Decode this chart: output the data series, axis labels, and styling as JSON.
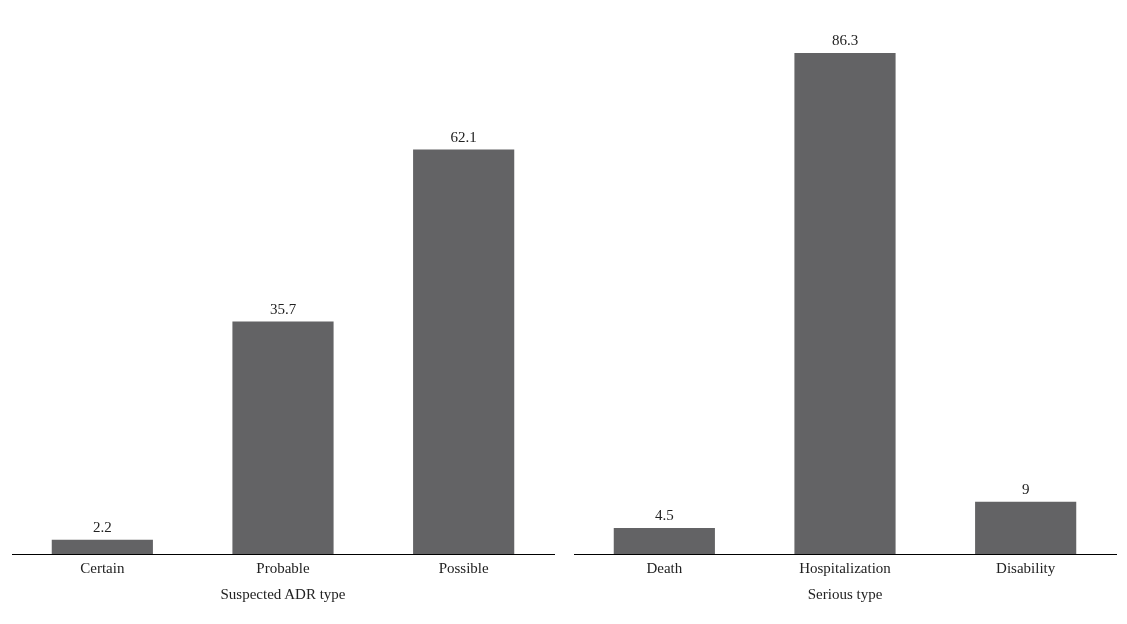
{
  "chart_data": [
    {
      "type": "bar",
      "xlabel": "Suspected ADR type",
      "categories": [
        "Certain",
        "Probable",
        "Possible"
      ],
      "values": [
        2.2,
        35.7,
        62.1
      ],
      "color": "#636365",
      "data_labels": true,
      "grid": false,
      "legend": false
    },
    {
      "type": "bar",
      "xlabel": "Serious type",
      "categories": [
        "Death",
        "Hospitalization",
        "Disability"
      ],
      "values": [
        4.5,
        86.3,
        9
      ],
      "color": "#636365",
      "data_labels": true,
      "grid": false,
      "legend": false
    }
  ]
}
